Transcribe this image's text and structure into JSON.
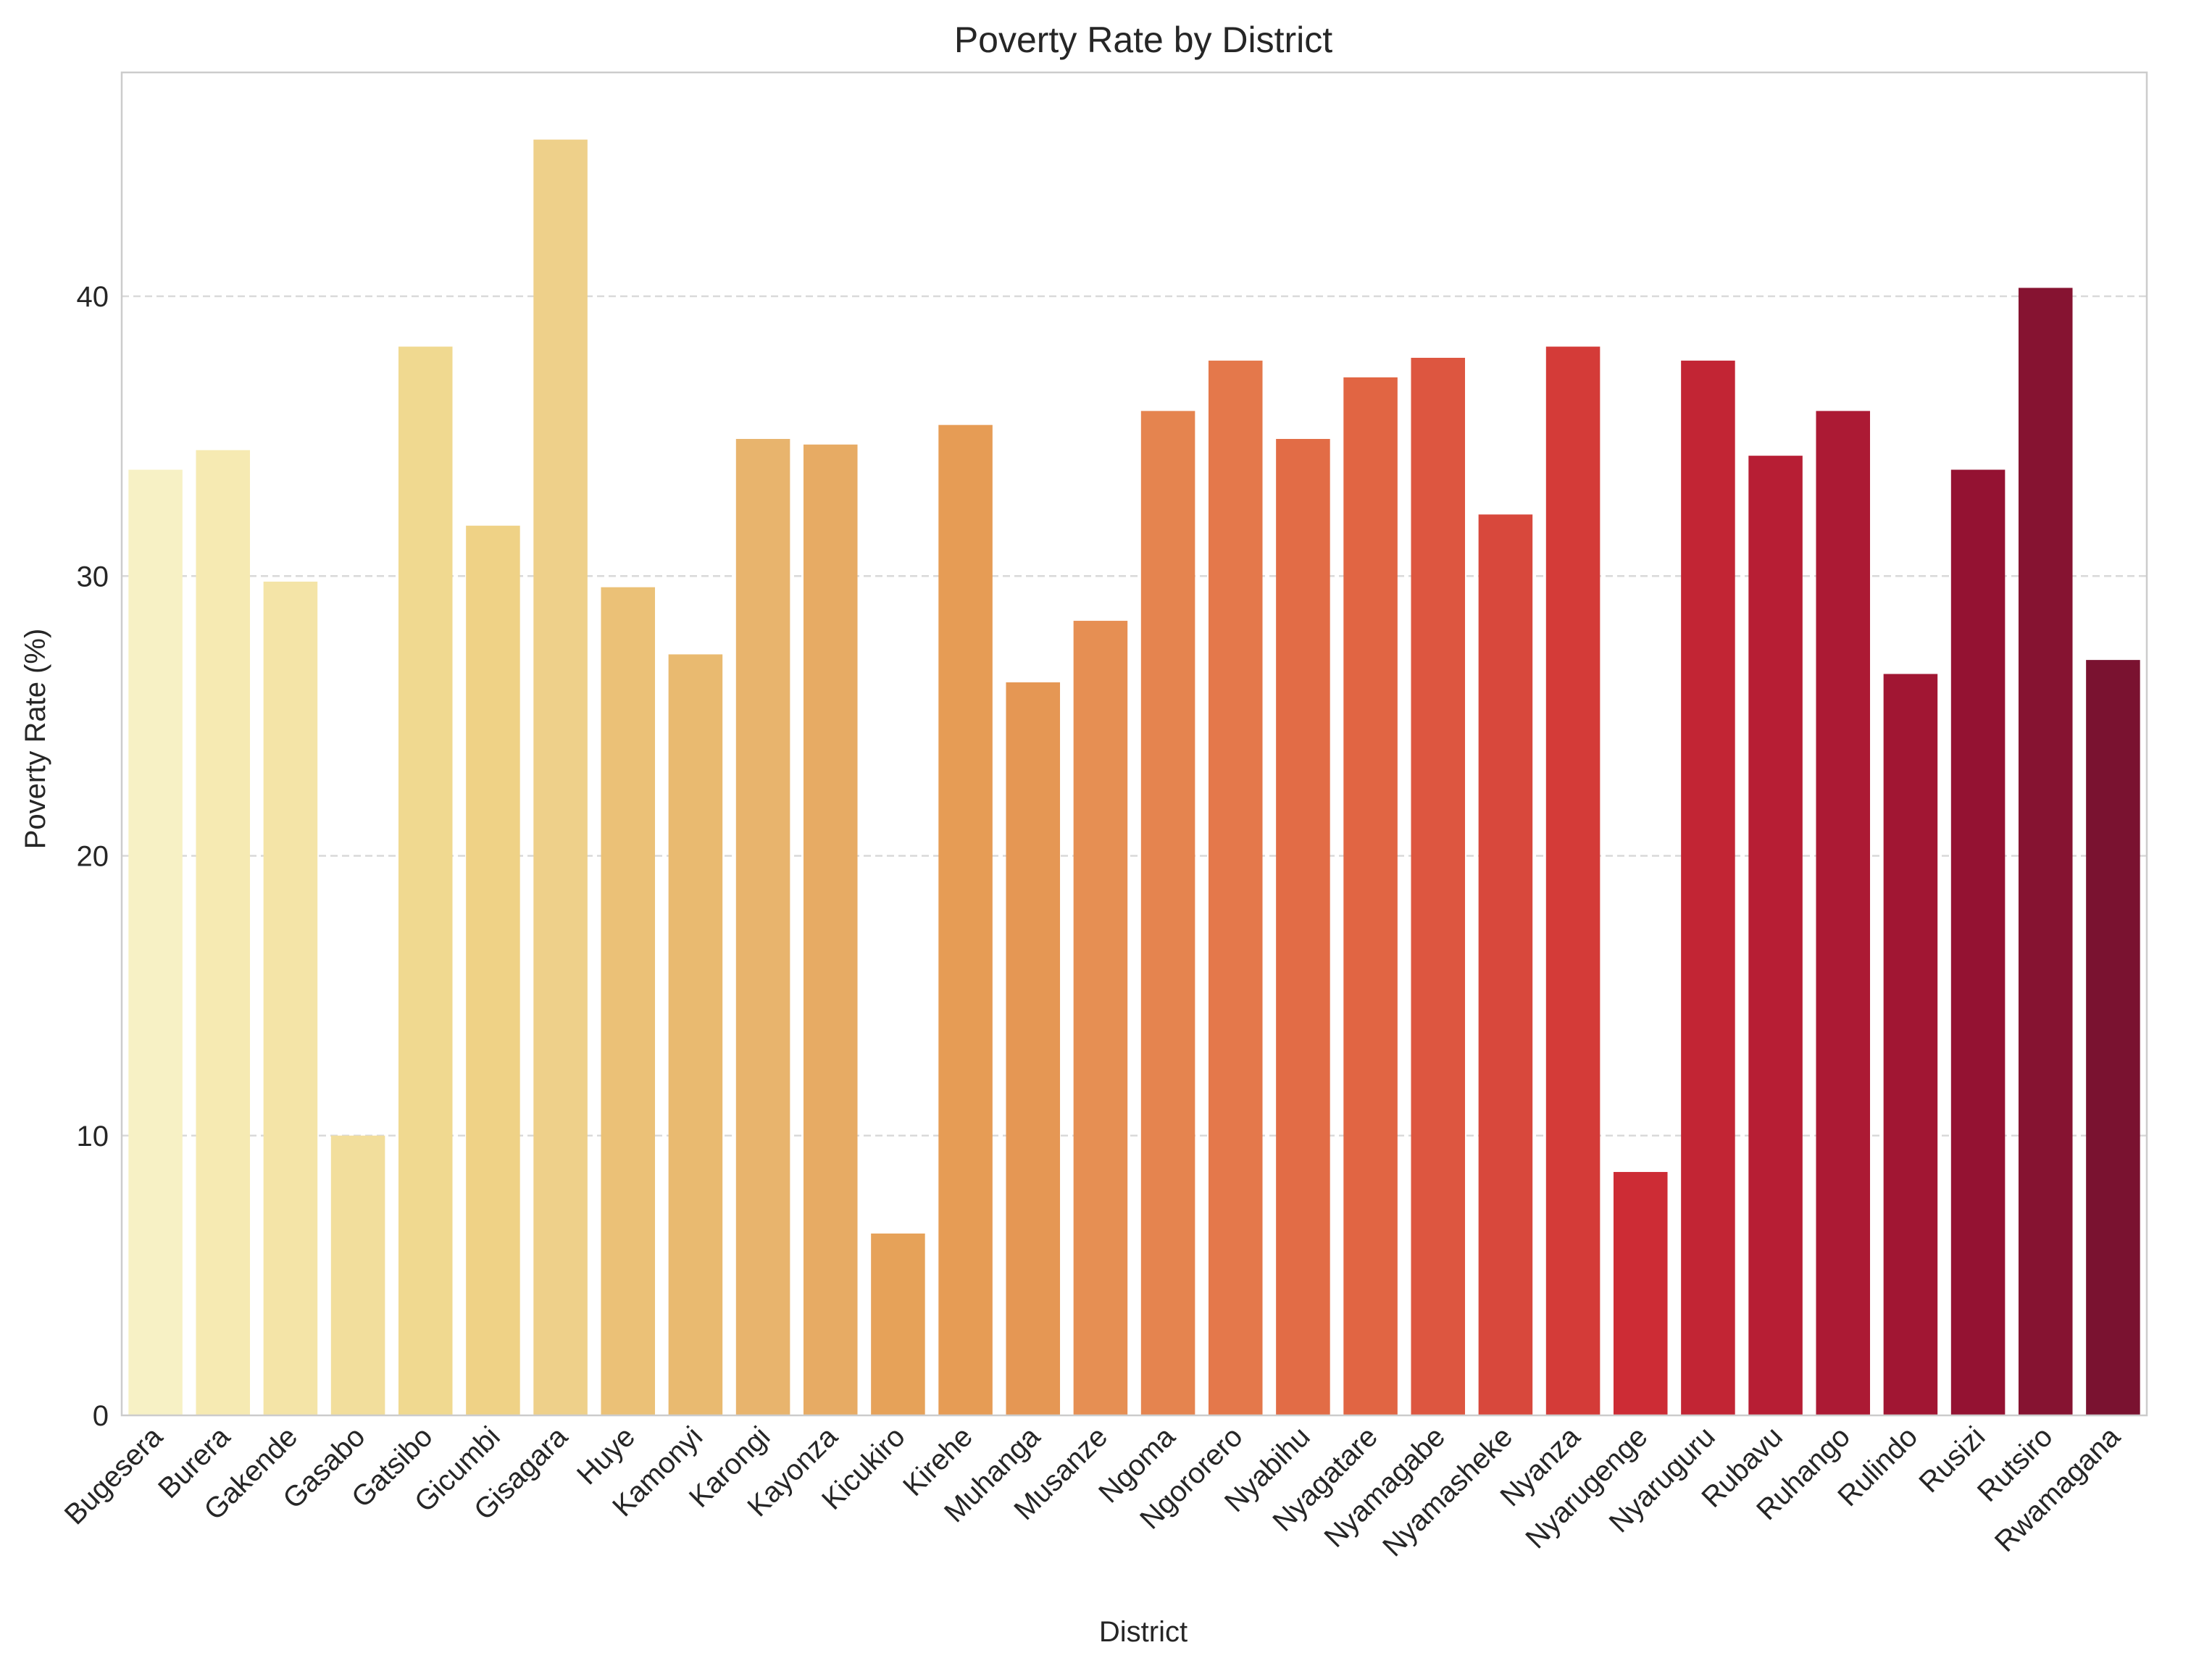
{
  "chart_data": {
    "type": "bar",
    "title": "Poverty Rate by District",
    "xlabel": "District",
    "ylabel": "Poverty Rate (%)",
    "ylim": [
      0,
      48
    ],
    "yticks": [
      0,
      10,
      20,
      30,
      40
    ],
    "grid": "y-dashed",
    "categories": [
      "Bugesera",
      "Burera",
      "Gakende",
      "Gasabo",
      "Gatsibo",
      "Gicumbi",
      "Gisagara",
      "Huye",
      "Kamonyi",
      "Karongi",
      "Kayonza",
      "Kicukiro",
      "Kirehe",
      "Muhanga",
      "Musanze",
      "Ngoma",
      "Ngororero",
      "Nyabihu",
      "Nyagatare",
      "Nyamagabe",
      "Nyamasheke",
      "Nyanza",
      "Nyarugenge",
      "Nyaruguru",
      "Rubavu",
      "Ruhango",
      "Rulindo",
      "Rusizi",
      "Rutsiro",
      "Rwamagana"
    ],
    "values": [
      33.8,
      34.5,
      29.8,
      10.0,
      38.2,
      31.8,
      45.6,
      29.6,
      27.2,
      34.9,
      34.7,
      6.5,
      35.4,
      26.2,
      28.4,
      35.9,
      37.7,
      34.9,
      37.1,
      37.8,
      32.2,
      38.2,
      8.7,
      37.7,
      34.3,
      35.9,
      26.5,
      33.8,
      40.3,
      27.0
    ],
    "colors": [
      "#f7f1c5",
      "#f6eab2",
      "#f4e4a7",
      "#f2de9c",
      "#f0d990",
      "#efd286",
      "#eed08a",
      "#ebc177",
      "#e9ba70",
      "#e8b46d",
      "#e7ab64",
      "#e6a259",
      "#e69c55",
      "#e59754",
      "#e68f53",
      "#e5844f",
      "#e4784b",
      "#e26c46",
      "#e16543",
      "#dd5640",
      "#d8483c",
      "#d43b38",
      "#cd2c35",
      "#c22534",
      "#b71e34",
      "#ac1a34",
      "#a11633",
      "#941232",
      "#861331",
      "#7a1230"
    ]
  }
}
